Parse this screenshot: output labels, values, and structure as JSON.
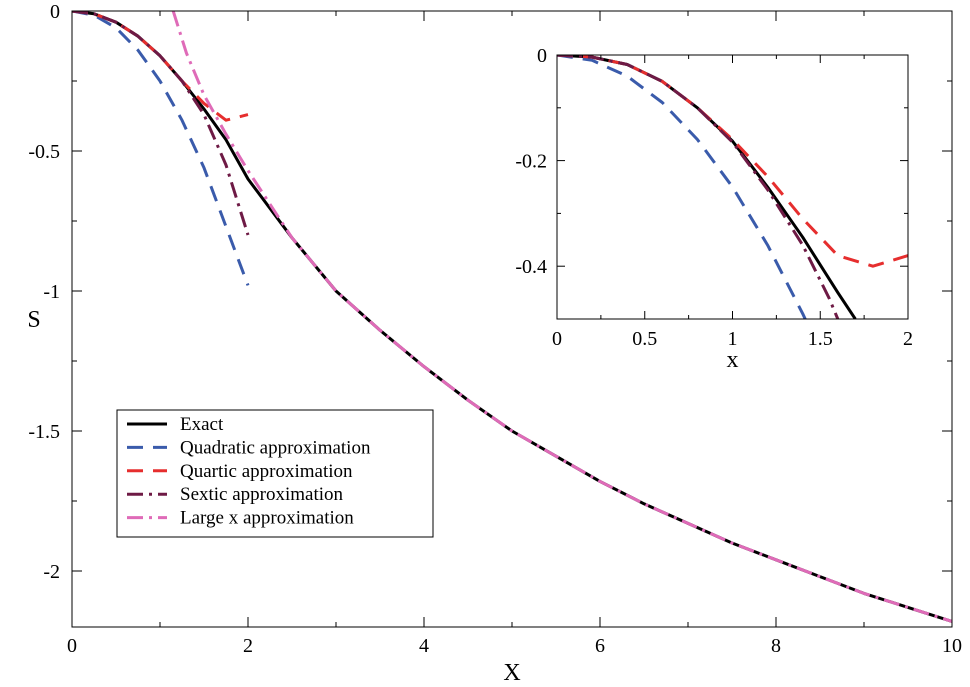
{
  "chart_data": [
    {
      "type": "line",
      "xlabel": "X",
      "ylabel": "S",
      "xlim": [
        0,
        10
      ],
      "ylim": [
        -2.2,
        0
      ],
      "x_ticks": [
        "0",
        "2",
        "4",
        "6",
        "8",
        "10"
      ],
      "y_ticks": [
        "0",
        "-0.5",
        "-1",
        "-1.5",
        "-2"
      ],
      "grid": false,
      "legend_position": "lower-left",
      "series": [
        {
          "name": "Exact",
          "color": "#000000",
          "style": "solid",
          "points": [
            [
              0,
              0
            ],
            [
              0.25,
              -0.01
            ],
            [
              0.5,
              -0.04
            ],
            [
              0.75,
              -0.09
            ],
            [
              1.0,
              -0.16
            ],
            [
              1.25,
              -0.25
            ],
            [
              1.5,
              -0.35
            ],
            [
              1.75,
              -0.46
            ],
            [
              2.0,
              -0.6
            ],
            [
              2.5,
              -0.81
            ],
            [
              3.0,
              -1.0
            ],
            [
              3.5,
              -1.14
            ],
            [
              4.0,
              -1.27
            ],
            [
              4.5,
              -1.39
            ],
            [
              5.0,
              -1.5
            ],
            [
              5.5,
              -1.59
            ],
            [
              6.0,
              -1.68
            ],
            [
              6.5,
              -1.76
            ],
            [
              7.0,
              -1.83
            ],
            [
              7.5,
              -1.9
            ],
            [
              8.0,
              -1.96
            ],
            [
              8.5,
              -2.02
            ],
            [
              9.0,
              -2.08
            ],
            [
              9.5,
              -2.13
            ],
            [
              10.0,
              -2.18
            ]
          ]
        },
        {
          "name": "Quadratic approximation",
          "color": "#3a5bab",
          "style": "dash",
          "points": [
            [
              0,
              0
            ],
            [
              0.25,
              -0.015
            ],
            [
              0.5,
              -0.06
            ],
            [
              0.75,
              -0.14
            ],
            [
              1.0,
              -0.25
            ],
            [
              1.25,
              -0.39
            ],
            [
              1.5,
              -0.56
            ],
            [
              1.75,
              -0.77
            ],
            [
              2.0,
              -0.98
            ]
          ]
        },
        {
          "name": "Quartic approximation",
          "color": "#e62e2e",
          "style": "dash",
          "points": [
            [
              0,
              0
            ],
            [
              0.25,
              -0.01
            ],
            [
              0.5,
              -0.04
            ],
            [
              0.75,
              -0.09
            ],
            [
              1.0,
              -0.16
            ],
            [
              1.25,
              -0.25
            ],
            [
              1.5,
              -0.33
            ],
            [
              1.75,
              -0.39
            ],
            [
              2.0,
              -0.37
            ]
          ]
        },
        {
          "name": "Sextic approximation",
          "color": "#6e1a45",
          "style": "dash-dot",
          "points": [
            [
              0,
              0
            ],
            [
              0.25,
              -0.01
            ],
            [
              0.5,
              -0.04
            ],
            [
              0.75,
              -0.09
            ],
            [
              1.0,
              -0.16
            ],
            [
              1.25,
              -0.25
            ],
            [
              1.5,
              -0.37
            ],
            [
              1.75,
              -0.55
            ],
            [
              2.0,
              -0.8
            ]
          ]
        },
        {
          "name": "Large x approximation",
          "color": "#df6bb8",
          "style": "dash-dot",
          "points": [
            [
              1.15,
              0
            ],
            [
              1.3,
              -0.15
            ],
            [
              1.5,
              -0.3
            ],
            [
              1.75,
              -0.44
            ],
            [
              2.0,
              -0.57
            ],
            [
              2.5,
              -0.81
            ],
            [
              3.0,
              -1.0
            ],
            [
              3.5,
              -1.14
            ],
            [
              4.0,
              -1.27
            ],
            [
              4.5,
              -1.39
            ],
            [
              5.0,
              -1.5
            ],
            [
              5.5,
              -1.59
            ],
            [
              6.0,
              -1.68
            ],
            [
              6.5,
              -1.76
            ],
            [
              7.0,
              -1.83
            ],
            [
              7.5,
              -1.9
            ],
            [
              8.0,
              -1.96
            ],
            [
              8.5,
              -2.02
            ],
            [
              9.0,
              -2.08
            ],
            [
              9.5,
              -2.13
            ],
            [
              10.0,
              -2.18
            ]
          ]
        }
      ]
    },
    {
      "type": "line",
      "role": "inset",
      "xlabel": "x",
      "ylabel": "",
      "xlim": [
        0,
        2
      ],
      "ylim": [
        -0.5,
        0
      ],
      "x_ticks": [
        "0",
        "0.5",
        "1",
        "1.5",
        "2"
      ],
      "y_ticks": [
        "0",
        "-0.2",
        "-0.4"
      ],
      "grid": false,
      "series": [
        {
          "name": "Exact",
          "color": "#000000",
          "style": "solid",
          "points": [
            [
              0,
              0
            ],
            [
              0.2,
              -0.004
            ],
            [
              0.4,
              -0.018
            ],
            [
              0.6,
              -0.05
            ],
            [
              0.8,
              -0.1
            ],
            [
              1.0,
              -0.163
            ],
            [
              1.2,
              -0.25
            ],
            [
              1.4,
              -0.345
            ],
            [
              1.6,
              -0.45
            ],
            [
              1.7,
              -0.5
            ]
          ]
        },
        {
          "name": "Quadratic approximation",
          "color": "#3a5bab",
          "style": "dash",
          "points": [
            [
              0,
              0
            ],
            [
              0.2,
              -0.01
            ],
            [
              0.4,
              -0.04
            ],
            [
              0.6,
              -0.09
            ],
            [
              0.8,
              -0.16
            ],
            [
              1.0,
              -0.25
            ],
            [
              1.2,
              -0.36
            ],
            [
              1.4,
              -0.49
            ],
            [
              1.414,
              -0.5
            ]
          ]
        },
        {
          "name": "Quartic approximation",
          "color": "#e62e2e",
          "style": "dash",
          "points": [
            [
              0,
              0
            ],
            [
              0.2,
              -0.004
            ],
            [
              0.4,
              -0.018
            ],
            [
              0.6,
              -0.05
            ],
            [
              0.8,
              -0.1
            ],
            [
              1.0,
              -0.16
            ],
            [
              1.2,
              -0.23
            ],
            [
              1.4,
              -0.31
            ],
            [
              1.6,
              -0.38
            ],
            [
              1.8,
              -0.4
            ],
            [
              2.0,
              -0.38
            ]
          ]
        },
        {
          "name": "Sextic approximation",
          "color": "#6e1a45",
          "style": "dash-dot",
          "points": [
            [
              0,
              0
            ],
            [
              0.2,
              -0.004
            ],
            [
              0.4,
              -0.018
            ],
            [
              0.6,
              -0.05
            ],
            [
              0.8,
              -0.1
            ],
            [
              1.0,
              -0.165
            ],
            [
              1.2,
              -0.255
            ],
            [
              1.4,
              -0.36
            ],
            [
              1.55,
              -0.46
            ],
            [
              1.6,
              -0.5
            ]
          ]
        }
      ]
    }
  ]
}
